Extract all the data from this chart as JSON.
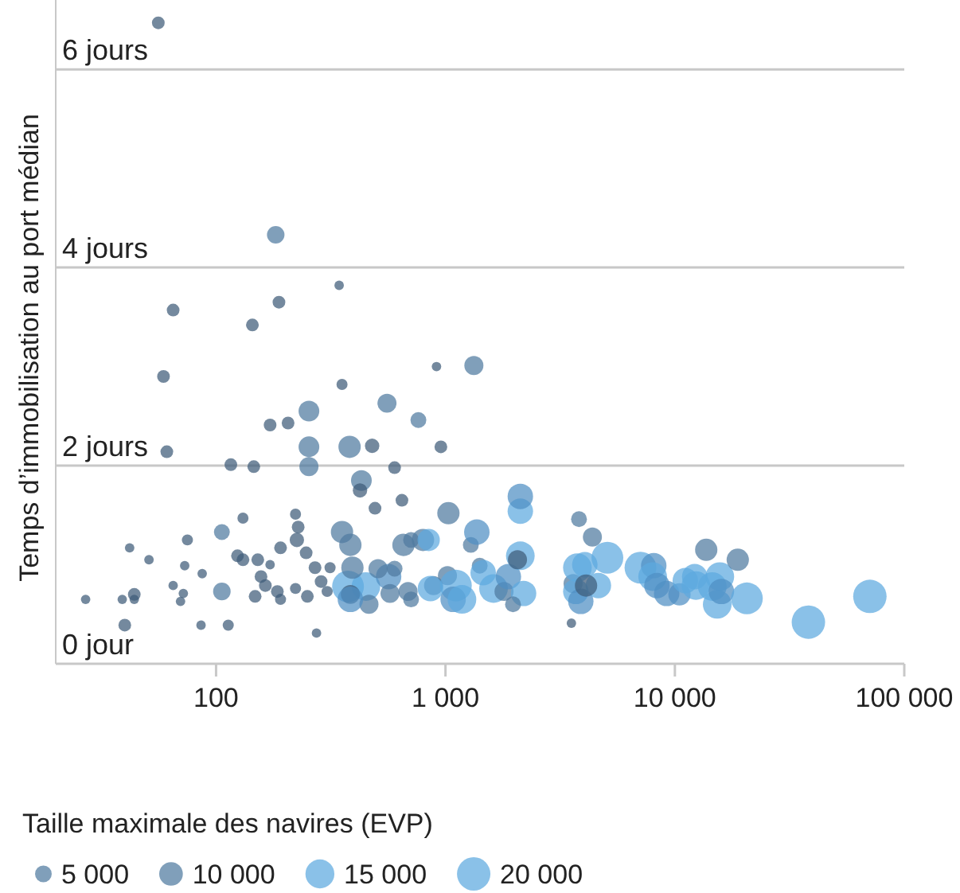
{
  "chart_data": {
    "type": "bubble",
    "ylabel": "Temps d’immobilisation au port médian",
    "legend_title": "Taille maximale des navires (EVP)",
    "log": "x",
    "grid": "y",
    "xlim": [
      20,
      100000
    ],
    "xticks": [
      {
        "value": 100,
        "label": "100"
      },
      {
        "value": 1000,
        "label": "1 000"
      },
      {
        "value": 10000,
        "label": "10 000"
      },
      {
        "value": 100000,
        "label": "100 000"
      }
    ],
    "ylim": [
      0,
      6.7
    ],
    "yticks": [
      {
        "value": 0,
        "label": "0 jour"
      },
      {
        "value": 2,
        "label": "2 jours"
      },
      {
        "value": 4,
        "label": "4 jours"
      },
      {
        "value": 6,
        "label": "6 jours"
      }
    ],
    "size_legend": [
      5000,
      10000,
      15000,
      20000
    ],
    "x": [
      56,
      182,
      188,
      344,
      65,
      144,
      59,
      354,
      914,
      1330,
      762,
      556,
      254,
      172,
      206,
      61,
      116,
      146,
      254,
      254,
      382,
      479,
      600,
      955,
      430,
      424,
      493,
      646,
      131,
      222,
      228,
      225,
      354,
      191,
      106,
      75,
      42,
      51,
      73,
      87,
      124,
      131,
      152,
      172,
      157,
      164,
      148,
      185,
      191,
      222,
      247,
      270,
      287,
      305,
      314,
      250,
      106,
      72,
      70,
      65,
      44,
      44,
      39,
      27,
      40,
      86,
      113,
      274,
      3540,
      376,
      450,
      385,
      464,
      385,
      385,
      393,
      565,
      508,
      573,
      600,
      656,
      708,
      798,
      845,
      687,
      708,
      887,
      1020,
      860,
      1110,
      1080,
      1180,
      1030,
      1290,
      1370,
      1410,
      1460,
      1620,
      1800,
      1880,
      2120,
      2120,
      2120,
      2190,
      2060,
      1970,
      3820,
      4370,
      3600,
      3760,
      4050,
      3700,
      3890,
      4640,
      5080,
      4100,
      7080,
      8090,
      8000,
      8350,
      10470,
      12350,
      13700,
      14560,
      15700,
      15300,
      15950,
      18800,
      20600,
      38200,
      70800,
      12200,
      9210,
      11100
    ],
    "values": [
      6.47,
      4.33,
      3.65,
      3.82,
      3.57,
      3.42,
      2.9,
      2.82,
      3.0,
      3.01,
      2.46,
      2.63,
      2.55,
      2.41,
      2.43,
      2.14,
      2.01,
      1.99,
      2.19,
      1.99,
      2.19,
      2.2,
      1.98,
      2.19,
      1.85,
      1.75,
      1.57,
      1.65,
      1.47,
      1.51,
      1.38,
      1.25,
      1.33,
      1.17,
      1.33,
      1.25,
      1.17,
      1.05,
      0.99,
      0.91,
      1.09,
      1.05,
      1.05,
      1.0,
      0.88,
      0.79,
      0.68,
      0.73,
      0.65,
      0.76,
      1.12,
      0.97,
      0.83,
      0.73,
      0.97,
      0.68,
      0.73,
      0.71,
      0.63,
      0.79,
      0.7,
      0.65,
      0.65,
      0.65,
      0.39,
      0.39,
      0.39,
      0.31,
      0.41,
      0.78,
      0.78,
      0.7,
      0.6,
      0.65,
      1.2,
      0.97,
      0.88,
      0.96,
      0.71,
      0.96,
      1.2,
      1.25,
      1.25,
      1.25,
      0.73,
      0.65,
      0.79,
      0.89,
      0.76,
      0.79,
      0.65,
      0.65,
      1.52,
      1.2,
      1.33,
      0.99,
      0.92,
      0.76,
      0.73,
      0.88,
      1.54,
      1.69,
      1.09,
      0.71,
      1.05,
      0.6,
      1.46,
      1.28,
      0.81,
      0.97,
      1.0,
      0.73,
      0.63,
      0.79,
      1.07,
      0.79,
      0.97,
      0.99,
      0.88,
      0.79,
      0.7,
      0.79,
      1.15,
      0.78,
      0.88,
      0.6,
      0.73,
      1.05,
      0.66,
      0.42,
      0.68,
      0.88,
      0.71,
      0.84
    ],
    "sizes": [
      2900,
      5500,
      2900,
      1600,
      2900,
      2900,
      2900,
      2200,
      1600,
      6500,
      4500,
      6500,
      7700,
      2900,
      2900,
      2900,
      2900,
      2900,
      7700,
      6500,
      8900,
      3700,
      2900,
      2900,
      7700,
      3700,
      2900,
      2900,
      2200,
      2200,
      2900,
      3700,
      8900,
      2900,
      4500,
      2200,
      1600,
      1600,
      1600,
      1600,
      2900,
      2900,
      2900,
      1600,
      2900,
      2900,
      2900,
      2900,
      2200,
      2200,
      2900,
      2900,
      2900,
      2200,
      2200,
      2900,
      5500,
      1600,
      1600,
      1600,
      2900,
      1600,
      1600,
      1600,
      2900,
      1600,
      2200,
      1600,
      1600,
      18100,
      14700,
      6500,
      6500,
      11600,
      8900,
      8900,
      11600,
      6500,
      6500,
      4500,
      8900,
      4500,
      8900,
      8900,
      6500,
      4500,
      6500,
      6500,
      11600,
      18100,
      11600,
      14700,
      8900,
      4500,
      11600,
      4500,
      11600,
      14700,
      6500,
      11600,
      11600,
      11600,
      14700,
      11600,
      6500,
      4500,
      4500,
      6500,
      6500,
      14700,
      11600,
      11600,
      11600,
      11600,
      18100,
      8900,
      18100,
      11600,
      14700,
      11600,
      8900,
      14700,
      8900,
      14700,
      14700,
      14700,
      11600,
      8900,
      18100,
      20000,
      20000,
      11600,
      11600,
      11600
    ],
    "colors": [
      "#3e5c78",
      "#4f7a9f",
      "#3e5c78",
      "#3e5c78",
      "#3e5c78",
      "#3e5c78",
      "#3e5c78",
      "#3e5c78",
      "#3e5c78",
      "#4f7a9f",
      "#4f7a9f",
      "#4f7a9f",
      "#4f7a9f",
      "#3e5c78",
      "#3e5c78",
      "#3e5c78",
      "#3e5c78",
      "#3e5c78",
      "#4f7a9f",
      "#4f7a9f",
      "#4f7a9f",
      "#3e5c78",
      "#3e5c78",
      "#3e5c78",
      "#4f7a9f",
      "#3e5c78",
      "#3e5c78",
      "#3e5c78",
      "#3e5c78",
      "#3e5c78",
      "#3e5c78",
      "#3e5c78",
      "#4f7a9f",
      "#3e5c78",
      "#4f7a9f",
      "#3e5c78",
      "#3e5c78",
      "#3e5c78",
      "#3e5c78",
      "#3e5c78",
      "#3e5c78",
      "#3e5c78",
      "#3e5c78",
      "#3e5c78",
      "#3e5c78",
      "#3e5c78",
      "#3e5c78",
      "#3e5c78",
      "#3e5c78",
      "#3e5c78",
      "#3e5c78",
      "#3e5c78",
      "#3e5c78",
      "#3e5c78",
      "#3e5c78",
      "#3e5c78",
      "#4f7a9f",
      "#3e5c78",
      "#3e5c78",
      "#3e5c78",
      "#3e5c78",
      "#3e5c78",
      "#3e5c78",
      "#3e5c78",
      "#3e5c78",
      "#3e5c78",
      "#3e5c78",
      "#3e5c78",
      "#3e5c78",
      "#5da9df",
      "#5da9df",
      "#3e5c78",
      "#4f7a9f",
      "#4f8fc4",
      "#4f7a9f",
      "#4f7a9f",
      "#4f8fc4",
      "#4f7a9f",
      "#4f7a9f",
      "#4f7a9f",
      "#4f7a9f",
      "#4f7a9f",
      "#4f7a9f",
      "#5da9df",
      "#4f7a9f",
      "#4f7a9f",
      "#4f7a9f",
      "#4f7a9f",
      "#5da9df",
      "#5da9df",
      "#4f8fc4",
      "#5da9df",
      "#4f7a9f",
      "#4f7a9f",
      "#4f8fc4",
      "#4f7a9f",
      "#5da9df",
      "#5da9df",
      "#4f7a9f",
      "#4f8fc4",
      "#5da9df",
      "#4f8fc4",
      "#5da9df",
      "#5da9df",
      "#3e5c78",
      "#4f7a9f",
      "#4f7a9f",
      "#4f7a9f",
      "#4f7a9f",
      "#5da9df",
      "#5da9df",
      "#5da9df",
      "#4f8fc4",
      "#5da9df",
      "#5da9df",
      "#3e5c78",
      "#5da9df",
      "#4f8fc4",
      "#5da9df",
      "#4f8fc4",
      "#4f8fc4",
      "#5da9df",
      "#4f7a9f",
      "#5da9df",
      "#5da9df",
      "#5da9df",
      "#4f8fc4",
      "#4f7a9f",
      "#5da9df",
      "#5da9df",
      "#5da9df",
      "#5da9df",
      "#4f8fc4",
      "#5da9df"
    ]
  }
}
